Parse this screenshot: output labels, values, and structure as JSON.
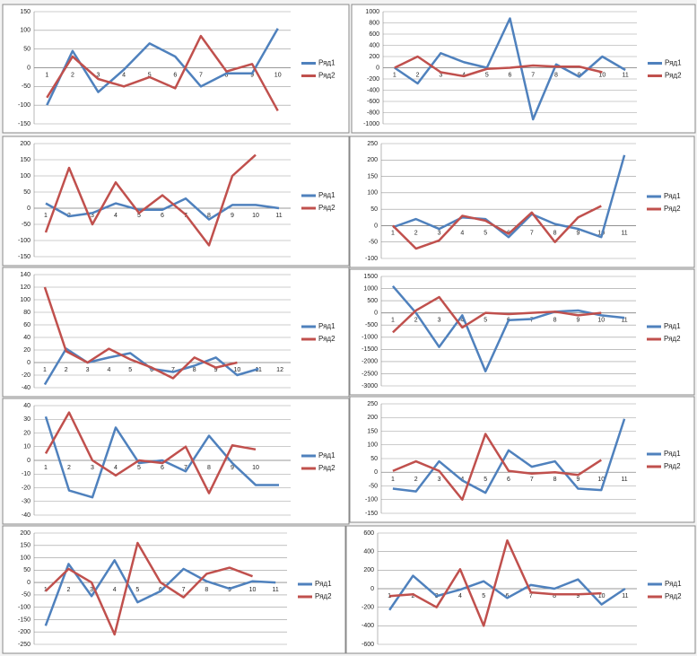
{
  "chart_data": [
    {
      "type": "line",
      "categories": [
        "1",
        "2",
        "3",
        "4",
        "5",
        "6",
        "7",
        "8",
        "9",
        "10"
      ],
      "ylim": [
        -150,
        150
      ],
      "yticks": [
        -150,
        -100,
        -50,
        0,
        50,
        100,
        150
      ],
      "grid": true,
      "series": [
        {
          "name": "Ряд1",
          "color": "#4f81bd",
          "values": [
            -100,
            45,
            -65,
            -5,
            65,
            30,
            -50,
            -15,
            -15,
            105
          ]
        },
        {
          "name": "Ряд2",
          "color": "#c0504d",
          "values": [
            -80,
            30,
            -30,
            -50,
            -25,
            -55,
            85,
            -10,
            10,
            -115
          ]
        }
      ]
    },
    {
      "type": "line",
      "categories": [
        "1",
        "2",
        "3",
        "4",
        "5",
        "6",
        "7",
        "8",
        "9",
        "10",
        "11"
      ],
      "ylim": [
        -1000,
        1000
      ],
      "yticks": [
        -1000,
        -800,
        -600,
        -400,
        -200,
        0,
        200,
        400,
        600,
        800,
        1000
      ],
      "grid": true,
      "series": [
        {
          "name": "Ряд1",
          "color": "#4f81bd",
          "values": [
            0,
            -280,
            260,
            100,
            0,
            880,
            -920,
            60,
            -160,
            200,
            -40
          ]
        },
        {
          "name": "Ряд2",
          "color": "#c0504d",
          "values": [
            0,
            200,
            -80,
            -150,
            -20,
            0,
            40,
            20,
            20,
            -80,
            null
          ]
        }
      ]
    },
    {
      "type": "line",
      "categories": [
        "1",
        "2",
        "3",
        "4",
        "5",
        "6",
        "7",
        "8",
        "9",
        "10",
        "11"
      ],
      "ylim": [
        -150,
        200
      ],
      "yticks": [
        -150,
        -100,
        -50,
        0,
        50,
        100,
        150,
        200
      ],
      "grid": true,
      "series": [
        {
          "name": "Ряд1",
          "color": "#4f81bd",
          "values": [
            15,
            -25,
            -15,
            15,
            -5,
            -5,
            30,
            -35,
            10,
            10,
            0
          ]
        },
        {
          "name": "Ряд2",
          "color": "#c0504d",
          "values": [
            -75,
            125,
            -50,
            80,
            -15,
            40,
            -20,
            -115,
            100,
            165,
            null
          ]
        }
      ]
    },
    {
      "type": "line",
      "categories": [
        "1",
        "2",
        "3",
        "4",
        "5",
        "6",
        "7",
        "8",
        "9",
        "10",
        "11"
      ],
      "ylim": [
        -100,
        250
      ],
      "yticks": [
        -100,
        -50,
        0,
        50,
        100,
        150,
        200,
        250
      ],
      "grid": true,
      "series": [
        {
          "name": "Ряд1",
          "color": "#4f81bd",
          "values": [
            -5,
            20,
            -10,
            25,
            20,
            -35,
            35,
            5,
            -10,
            -35,
            215
          ]
        },
        {
          "name": "Ряд2",
          "color": "#c0504d",
          "values": [
            0,
            -70,
            -45,
            30,
            15,
            -25,
            40,
            -50,
            25,
            60,
            null
          ]
        }
      ]
    },
    {
      "type": "line",
      "categories": [
        "1",
        "2",
        "3",
        "4",
        "5",
        "6",
        "7",
        "8",
        "9",
        "10",
        "11",
        "12"
      ],
      "ylim": [
        -40,
        140
      ],
      "yticks": [
        -40,
        -20,
        0,
        20,
        40,
        60,
        80,
        100,
        120,
        140
      ],
      "grid": true,
      "series": [
        {
          "name": "Ряд1",
          "color": "#4f81bd",
          "values": [
            -35,
            22,
            0,
            8,
            15,
            -10,
            -15,
            -5,
            8,
            -20,
            -10,
            null
          ]
        },
        {
          "name": "Ряд2",
          "color": "#c0504d",
          "values": [
            120,
            18,
            0,
            22,
            5,
            -8,
            -25,
            8,
            -8,
            0,
            null,
            null
          ]
        }
      ]
    },
    {
      "type": "line",
      "categories": [
        "1",
        "2",
        "3",
        "4",
        "5",
        "6",
        "7",
        "8",
        "9",
        "10",
        "11"
      ],
      "ylim": [
        -3000,
        1500
      ],
      "yticks": [
        -3000,
        -2500,
        -2000,
        -1500,
        -1000,
        -500,
        0,
        500,
        1000,
        1500
      ],
      "grid": true,
      "series": [
        {
          "name": "Ряд1",
          "color": "#4f81bd",
          "values": [
            1100,
            0,
            -1400,
            -100,
            -2400,
            -300,
            -250,
            50,
            100,
            -100,
            -200
          ]
        },
        {
          "name": "Ряд2",
          "color": "#c0504d",
          "values": [
            -800,
            100,
            650,
            -600,
            0,
            -50,
            0,
            50,
            -100,
            0,
            null
          ]
        }
      ]
    },
    {
      "type": "line",
      "categories": [
        "1",
        "2",
        "3",
        "4",
        "5",
        "6",
        "7",
        "8",
        "9",
        "10",
        null
      ],
      "ylim": [
        -40,
        40
      ],
      "yticks": [
        -40,
        -30,
        -20,
        -10,
        0,
        10,
        20,
        30,
        40
      ],
      "grid": true,
      "series": [
        {
          "name": "Ряд1",
          "color": "#4f81bd",
          "values": [
            32,
            -22,
            -27,
            24,
            -2,
            0,
            -8,
            18,
            -2,
            -18,
            -18
          ]
        },
        {
          "name": "Ряд2",
          "color": "#c0504d",
          "values": [
            5,
            35,
            0,
            -11,
            0,
            -2,
            10,
            -24,
            11,
            8,
            null
          ]
        }
      ]
    },
    {
      "type": "line",
      "categories": [
        "1",
        "2",
        "3",
        "4",
        "5",
        "6",
        "7",
        "8",
        "9",
        "10",
        "11"
      ],
      "ylim": [
        -150,
        250
      ],
      "yticks": [
        -150,
        -100,
        -50,
        0,
        50,
        100,
        150,
        200,
        250
      ],
      "grid": true,
      "series": [
        {
          "name": "Ряд1",
          "color": "#4f81bd",
          "values": [
            -60,
            -70,
            40,
            -30,
            -75,
            80,
            20,
            40,
            -60,
            -65,
            195
          ]
        },
        {
          "name": "Ряд2",
          "color": "#c0504d",
          "values": [
            5,
            40,
            5,
            -100,
            140,
            5,
            -5,
            0,
            -10,
            45,
            null
          ]
        }
      ]
    },
    {
      "type": "line",
      "categories": [
        "1",
        "2",
        "3",
        "4",
        "5",
        "6",
        "7",
        "8",
        "9",
        "10",
        "11"
      ],
      "ylim": [
        -250,
        200
      ],
      "yticks": [
        -250,
        -200,
        -150,
        -100,
        -50,
        0,
        50,
        100,
        150,
        200
      ],
      "grid": true,
      "series": [
        {
          "name": "Ряд1",
          "color": "#4f81bd",
          "values": [
            -175,
            75,
            -55,
            90,
            -80,
            -35,
            55,
            5,
            -25,
            5,
            0
          ]
        },
        {
          "name": "Ряд2",
          "color": "#c0504d",
          "values": [
            -35,
            55,
            0,
            -210,
            160,
            0,
            -60,
            35,
            60,
            25,
            null
          ]
        }
      ]
    },
    {
      "type": "line",
      "categories": [
        "1",
        "2",
        "3",
        "4",
        "5",
        "6",
        "7",
        "8",
        "9",
        "10",
        "11"
      ],
      "ylim": [
        -600,
        600
      ],
      "yticks": [
        -600,
        -400,
        -200,
        0,
        200,
        400,
        600
      ],
      "grid": true,
      "series": [
        {
          "name": "Ряд1",
          "color": "#4f81bd",
          "values": [
            -230,
            140,
            -80,
            -10,
            80,
            -100,
            40,
            0,
            100,
            -170,
            0
          ]
        },
        {
          "name": "Ряд2",
          "color": "#c0504d",
          "values": [
            -80,
            -60,
            -200,
            210,
            -400,
            520,
            -40,
            -60,
            -60,
            -50,
            null
          ]
        }
      ]
    }
  ]
}
